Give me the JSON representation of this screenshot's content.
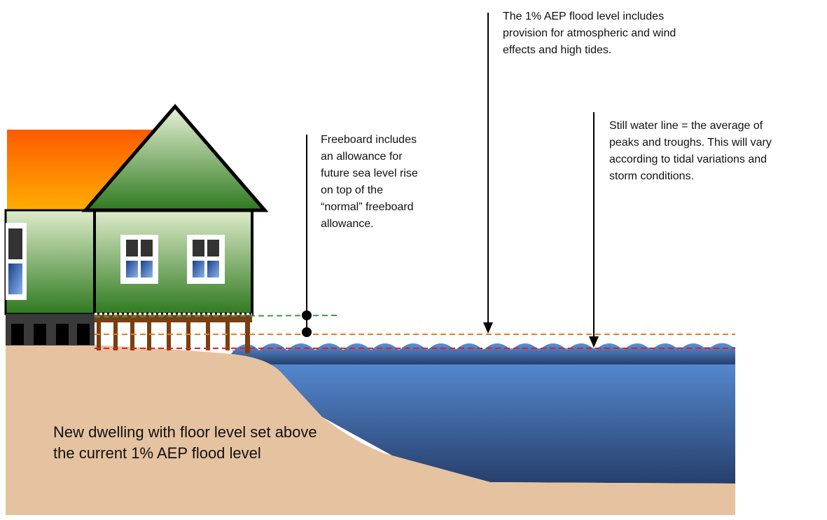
{
  "annotations": [
    {
      "lines": [
        "The 1% AEP flood level includes",
        "provision for atmospheric and wind",
        "effects and high tides."
      ]
    },
    {
      "lines": [
        "Still water line = the average of",
        "peaks and troughs. This will vary",
        "according to tidal variations and",
        "storm conditions."
      ]
    },
    {
      "lines": [
        "Freeboard includes",
        "an allowance for",
        "future sea level rise",
        "on top of the",
        "“normal” freeboard",
        "allowance."
      ]
    },
    {
      "lines": [
        "New dwelling with floor level set above",
        "the current 1% AEP flood level"
      ]
    }
  ]
}
